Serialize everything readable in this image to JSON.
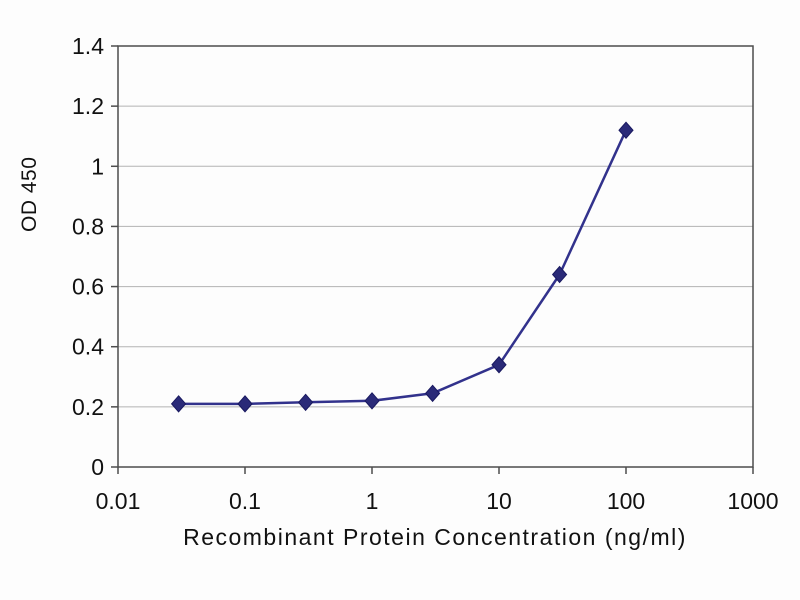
{
  "chart_data": {
    "type": "line",
    "title": "",
    "xlabel": "Recombinant Protein Concentration (ng/ml)",
    "ylabel": "OD 450",
    "x_scale": "log",
    "xlim": [
      0.01,
      1000
    ],
    "ylim": [
      0,
      1.4
    ],
    "x_ticks": [
      0.01,
      0.1,
      1,
      10,
      100,
      1000
    ],
    "x_tick_labels": [
      "0.01",
      "0.1",
      "1",
      "10",
      "100",
      "1000"
    ],
    "y_ticks": [
      0,
      0.2,
      0.4,
      0.6,
      0.8,
      1,
      1.2,
      1.4
    ],
    "y_tick_labels": [
      "0",
      "0.2",
      "0.4",
      "0.6",
      "0.8",
      "1",
      "1.2",
      "1.4"
    ],
    "grid": "horizontal",
    "legend": "none",
    "series": [
      {
        "name": "OD450",
        "marker": "diamond",
        "x": [
          0.03,
          0.1,
          0.3,
          1,
          3,
          10,
          30,
          100
        ],
        "y": [
          0.21,
          0.21,
          0.215,
          0.22,
          0.245,
          0.34,
          0.64,
          1.12
        ]
      }
    ]
  },
  "colors": {
    "line": "#32328c",
    "marker_fill": "#2a2a78",
    "marker_edge": "#191960",
    "grid": "#b3b3b3",
    "frame": "#4d4d4d",
    "tick": "#4d4d4d",
    "text": "#111111",
    "background": "#fdfdfd"
  }
}
